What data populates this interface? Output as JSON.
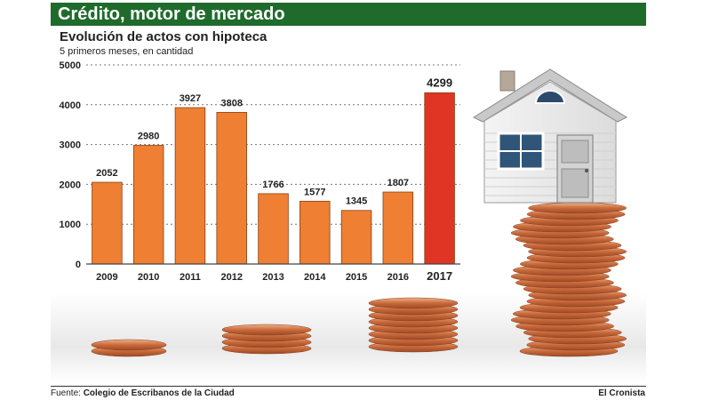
{
  "header": {
    "title": "Crédito, motor de mercado"
  },
  "chart_data": {
    "type": "bar",
    "title": "Evolución de actos con hipoteca",
    "subtitle": "5 primeros meses, en cantidad",
    "xlabel": "",
    "ylabel": "",
    "categories": [
      "2009",
      "2010",
      "2011",
      "2012",
      "2013",
      "2014",
      "2015",
      "2016",
      "2017"
    ],
    "values": [
      2052,
      2980,
      3927,
      3808,
      1766,
      1577,
      1345,
      1807,
      4299
    ],
    "value_labels": [
      "2052",
      "2980",
      "3927",
      "3808",
      "1766",
      "1577",
      "1345",
      "1807",
      "4299"
    ],
    "highlight_index": 8,
    "yticks": [
      0,
      1000,
      2000,
      3000,
      4000,
      5000
    ],
    "ylim": [
      0,
      5000
    ],
    "grid": true,
    "colors": {
      "bar": "#ef7f33",
      "highlight": "#e03524",
      "grid": "#777777"
    }
  },
  "footer": {
    "source_prefix": "Fuente:",
    "source_name": "Colegio de Escribanos de la Ciudad",
    "brand": "El Cronista"
  }
}
